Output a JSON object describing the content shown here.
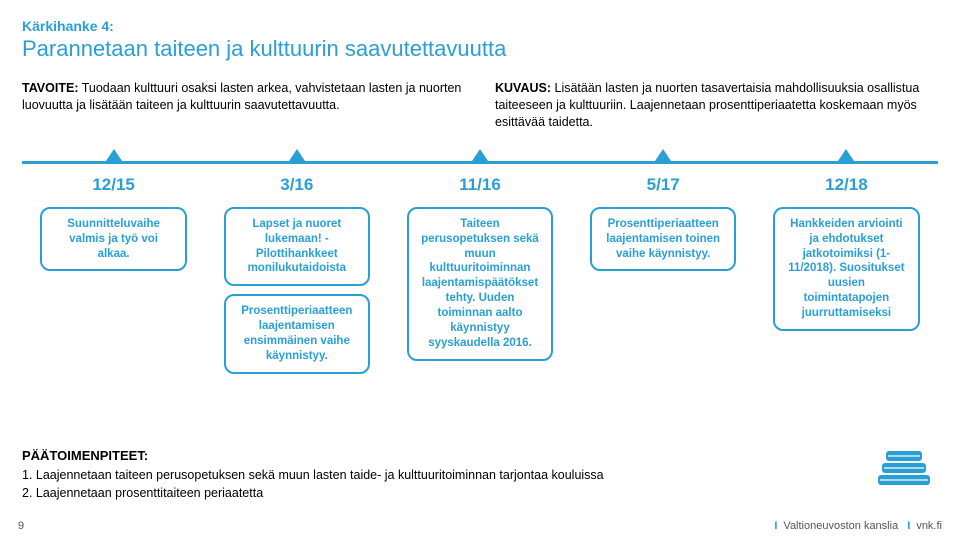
{
  "header": {
    "label": "Kärkihanke 4:",
    "title": "Parannetaan taiteen ja kulttuurin saavutettavuutta",
    "label_color": "#2a9fd6",
    "title_color": "#2a9fd6"
  },
  "columns": {
    "left_lead": "TAVOITE:",
    "left_body": " Tuodaan kulttuuri osaksi lasten arkea, vahvistetaan lasten ja nuorten luovuutta ja lisätään taiteen ja kulttuurin saavutettavuutta.",
    "right_lead": "KUVAUS:",
    "right_body": " Lisätään lasten ja nuorten tasavertaisia mahdollisuuksia osallistua taiteeseen ja kulttuuriin. Laajennetaan prosenttiperiaatetta koskemaan myös esittävää taidetta."
  },
  "timeline": {
    "line_color": "#2a9fd6",
    "triangle_color": "#2a9fd6",
    "date_color": "#2a9fd6",
    "positions_pct": [
      10,
      30,
      50,
      70,
      90
    ],
    "dates": [
      "12/15",
      "3/16",
      "11/16",
      "5/17",
      "12/18"
    ],
    "box_border": "#2a9fd6",
    "box_text": "#2a9fd6",
    "boxes": [
      {
        "left_pct": 2,
        "w_pct": 16,
        "lines": [
          "Suunnitteluvaihe valmis ja työ voi alkaa."
        ]
      },
      {
        "left_pct": 22,
        "w_pct": 16,
        "lines": [
          "Lapset ja nuoret lukemaan! - Pilottihankkeet monilukutaidoista",
          "Prosentti­periaatteen laajentamisen ensimmäinen vaihe käynnistyy."
        ]
      },
      {
        "left_pct": 42,
        "w_pct": 16,
        "lines": [
          "Taiteen perusopetuksen sekä muun kulttuuritoiminnan laajentamispäätökset tehty. Uuden toiminnan aalto käynnistyy syyskaudella 2016."
        ]
      },
      {
        "left_pct": 62,
        "w_pct": 16,
        "lines": [
          "Prosenttiperiaatteen laajentamisen toinen vaihe käynnistyy."
        ]
      },
      {
        "left_pct": 82,
        "w_pct": 16,
        "lines": [
          "Hankkeiden arviointi ja ehdotukset jatkotoimiksi (1-11/2018). Suositukset uusien toimintatapojen juurruttamiseksi"
        ]
      }
    ]
  },
  "footer": {
    "title": "PÄÄTOIMENPITEET:",
    "line1": "1. Laajennetaan taiteen perusopetuksen sekä muun lasten taide- ja kulttuuritoiminnan tarjontaa kouluissa",
    "line2": "2. Laajennetaan prosenttitaiteen periaatetta"
  },
  "bottom": {
    "page_number": "9",
    "org": "Valtioneuvoston kanslia",
    "site": "vnk.fi"
  },
  "icon": {
    "color": "#2a9fd6"
  }
}
